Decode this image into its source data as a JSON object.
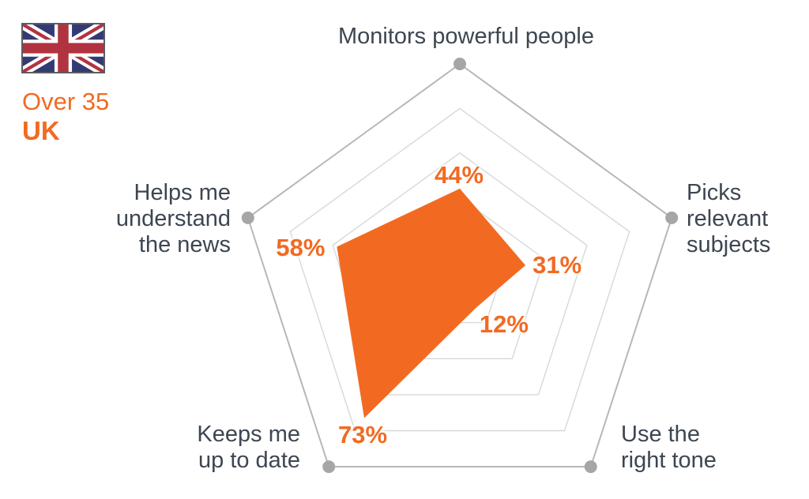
{
  "header": {
    "group_label": "Over 35",
    "country_label": "UK",
    "accent_color": "#f26a22"
  },
  "flag": {
    "name": "united-kingdom",
    "colors": {
      "blue": "#333a73",
      "red": "#b23340",
      "white": "#ffffff",
      "border": "#5a5c60"
    }
  },
  "chart_data": {
    "type": "radar",
    "categories": [
      "Monitors powerful people",
      "Picks relevant subjects",
      "Use the right tone",
      "Keeps me up to date",
      "Helps me understand the news"
    ],
    "values": [
      44,
      31,
      12,
      73,
      58
    ],
    "value_labels": [
      "44%",
      "31%",
      "12%",
      "73%",
      "58%"
    ],
    "series": [
      {
        "name": "Over 35 UK",
        "values": [
          44,
          31,
          12,
          73,
          58
        ]
      }
    ],
    "scale": {
      "min": 0,
      "max": 100,
      "rings": 5,
      "ring_step_percent": 20
    },
    "grid": true,
    "legend_position": "top-left",
    "colors": {
      "series_fill": "#f26a22",
      "grid_inner": "#d8d8d8",
      "grid_outer": "#b7b7b7",
      "vertex_dot": "#a6a6a6",
      "category_text": "#3d4651",
      "value_text": "#f26a22"
    }
  }
}
